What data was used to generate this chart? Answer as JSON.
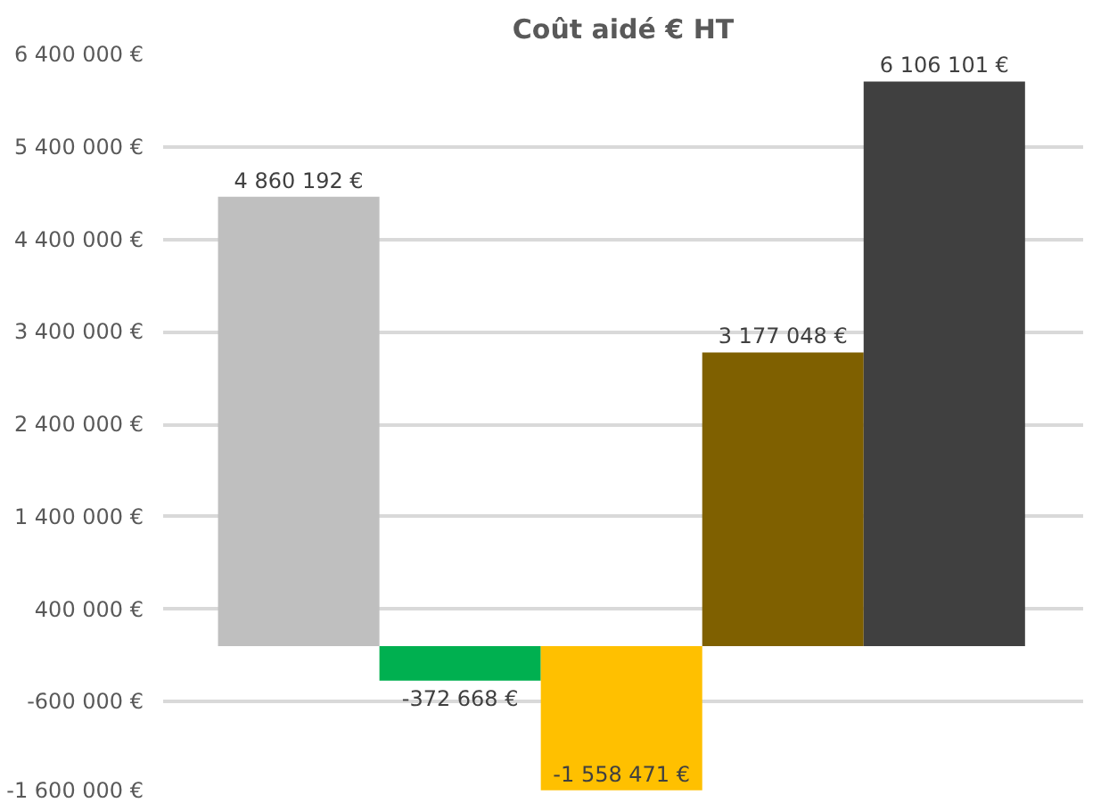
{
  "chart_data": {
    "type": "bar",
    "title": "Coût aidé € HT",
    "categories": [
      null,
      null,
      null,
      null,
      null
    ],
    "values": [
      4860192,
      -372668,
      -1558471,
      3177048,
      6106101
    ],
    "colors": [
      "#bfbfbf",
      "#00b050",
      "#ffc000",
      "#7f6000",
      "#404040"
    ],
    "value_labels": [
      "4 860 192 €",
      "-372 668 €",
      "-1 558 471 €",
      "3 177 048 €",
      "6 106 101 €"
    ],
    "ylim": [
      -1600000,
      6400000
    ],
    "yticks": [
      {
        "value": -1600000,
        "label": "-1 600 000 €"
      },
      {
        "value": -600000,
        "label": "-600 000 €"
      },
      {
        "value": 400000,
        "label": "400 000 €"
      },
      {
        "value": 1400000,
        "label": "1 400 000 €"
      },
      {
        "value": 2400000,
        "label": "2 400 000 €"
      },
      {
        "value": 3400000,
        "label": "3 400 000 €"
      },
      {
        "value": 4400000,
        "label": "4 400 000 €"
      },
      {
        "value": 5400000,
        "label": "5 400 000 €"
      },
      {
        "value": 6400000,
        "label": "6 400 000 €"
      }
    ],
    "grid": "y",
    "tick_labels": "y"
  }
}
